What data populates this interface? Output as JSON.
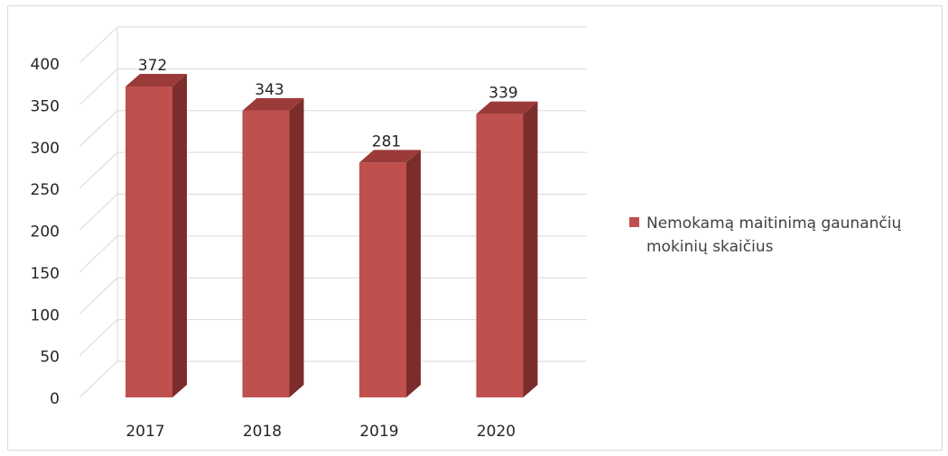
{
  "chart_data": {
    "type": "bar",
    "categories": [
      "2017",
      "2018",
      "2019",
      "2020"
    ],
    "series": [
      {
        "name": "Nemokamą maitinimą gaunančių mokinių skaičius",
        "values": [
          372,
          343,
          281,
          339
        ]
      }
    ],
    "data_labels": [
      "372",
      "343",
      "281",
      "339"
    ],
    "ylim": [
      0,
      400
    ],
    "yticks": [
      "0",
      "50",
      "100",
      "150",
      "200",
      "250",
      "300",
      "350",
      "400"
    ],
    "grid": true,
    "legend_position": "right",
    "title": "",
    "xlabel": "",
    "ylabel": "",
    "colors": {
      "bar_front": "#c0504d",
      "bar_side": "#7b2d2c",
      "bar_top": "#9a3b39",
      "grid": "#d9d9d9"
    }
  }
}
